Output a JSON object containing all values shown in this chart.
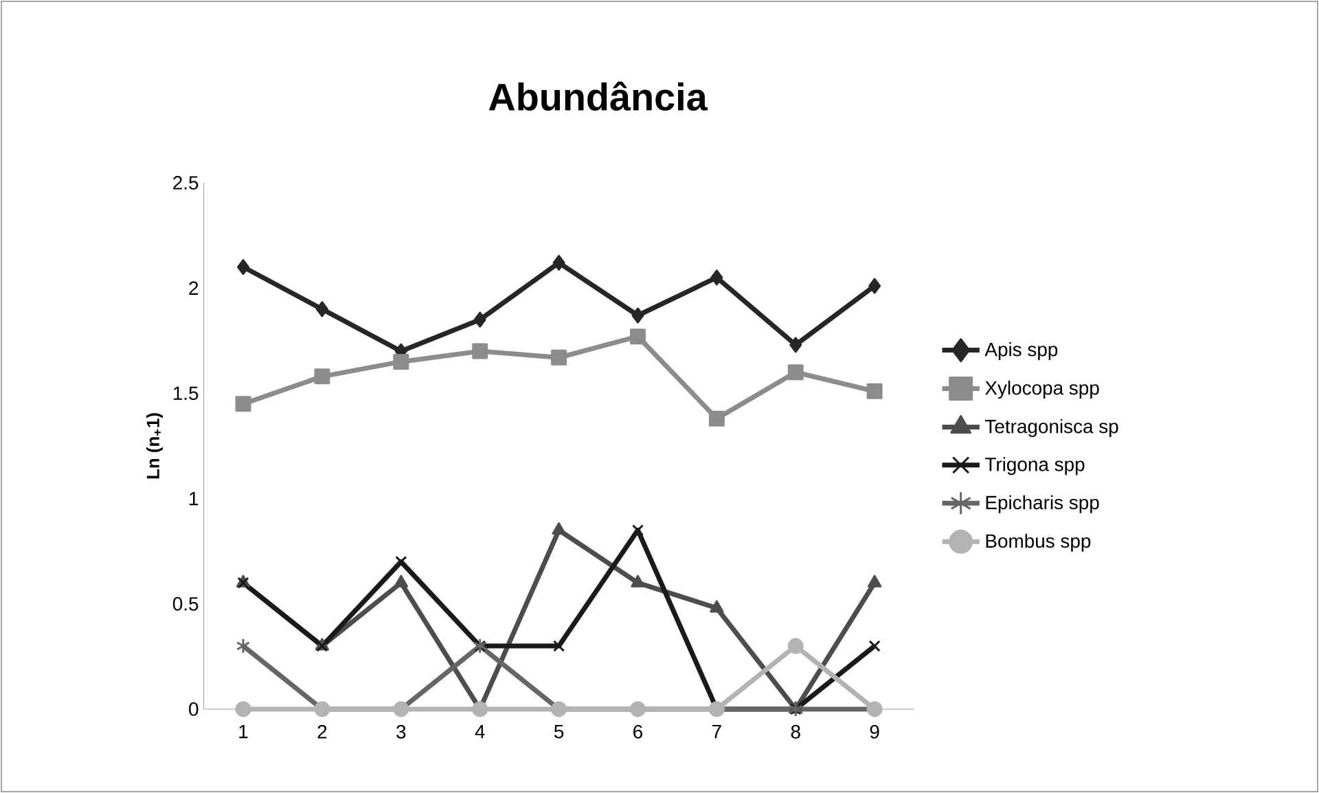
{
  "chart_data": {
    "type": "line",
    "title": "Abundância",
    "ylabel": "Ln (n$_{+}$1)",
    "categories": [
      "1",
      "2",
      "3",
      "4",
      "5",
      "6",
      "7",
      "8",
      "9"
    ],
    "ylim": [
      0,
      2.5
    ],
    "yticks": [
      0,
      0.5,
      1,
      1.5,
      2,
      2.5
    ],
    "grid": false,
    "legend": "right",
    "line_style": "solid",
    "series": [
      {
        "name": "Apis spp",
        "color": "#262626",
        "marker": "diamond",
        "values": [
          2.1,
          1.9,
          1.7,
          1.85,
          2.12,
          1.87,
          2.05,
          1.73,
          2.01
        ]
      },
      {
        "name": "Xylocopa spp",
        "color": "#8c8c8c",
        "marker": "square",
        "values": [
          1.45,
          1.58,
          1.65,
          1.7,
          1.67,
          1.77,
          1.38,
          1.6,
          1.51
        ]
      },
      {
        "name": "Tetragonisca sp",
        "color": "#4d4d4d",
        "marker": "triangle",
        "values": [
          0.6,
          0.3,
          0.6,
          0,
          0.85,
          0.6,
          0.48,
          0,
          0.6
        ]
      },
      {
        "name": "Trigona spp",
        "color": "#1a1a1a",
        "marker": "cross",
        "values": [
          0.6,
          0.3,
          0.7,
          0.3,
          0.3,
          0.85,
          0,
          0,
          0.3
        ]
      },
      {
        "name": "Epicharis spp",
        "color": "#666666",
        "marker": "cross",
        "values": [
          0.3,
          0,
          0,
          0.3,
          0,
          0,
          0,
          0,
          0
        ]
      },
      {
        "name": "Bombus spp",
        "color": "#b3b3b3",
        "marker": "circle",
        "values": [
          0,
          0,
          0,
          0,
          0,
          0,
          0,
          0.3,
          0
        ]
      }
    ]
  }
}
